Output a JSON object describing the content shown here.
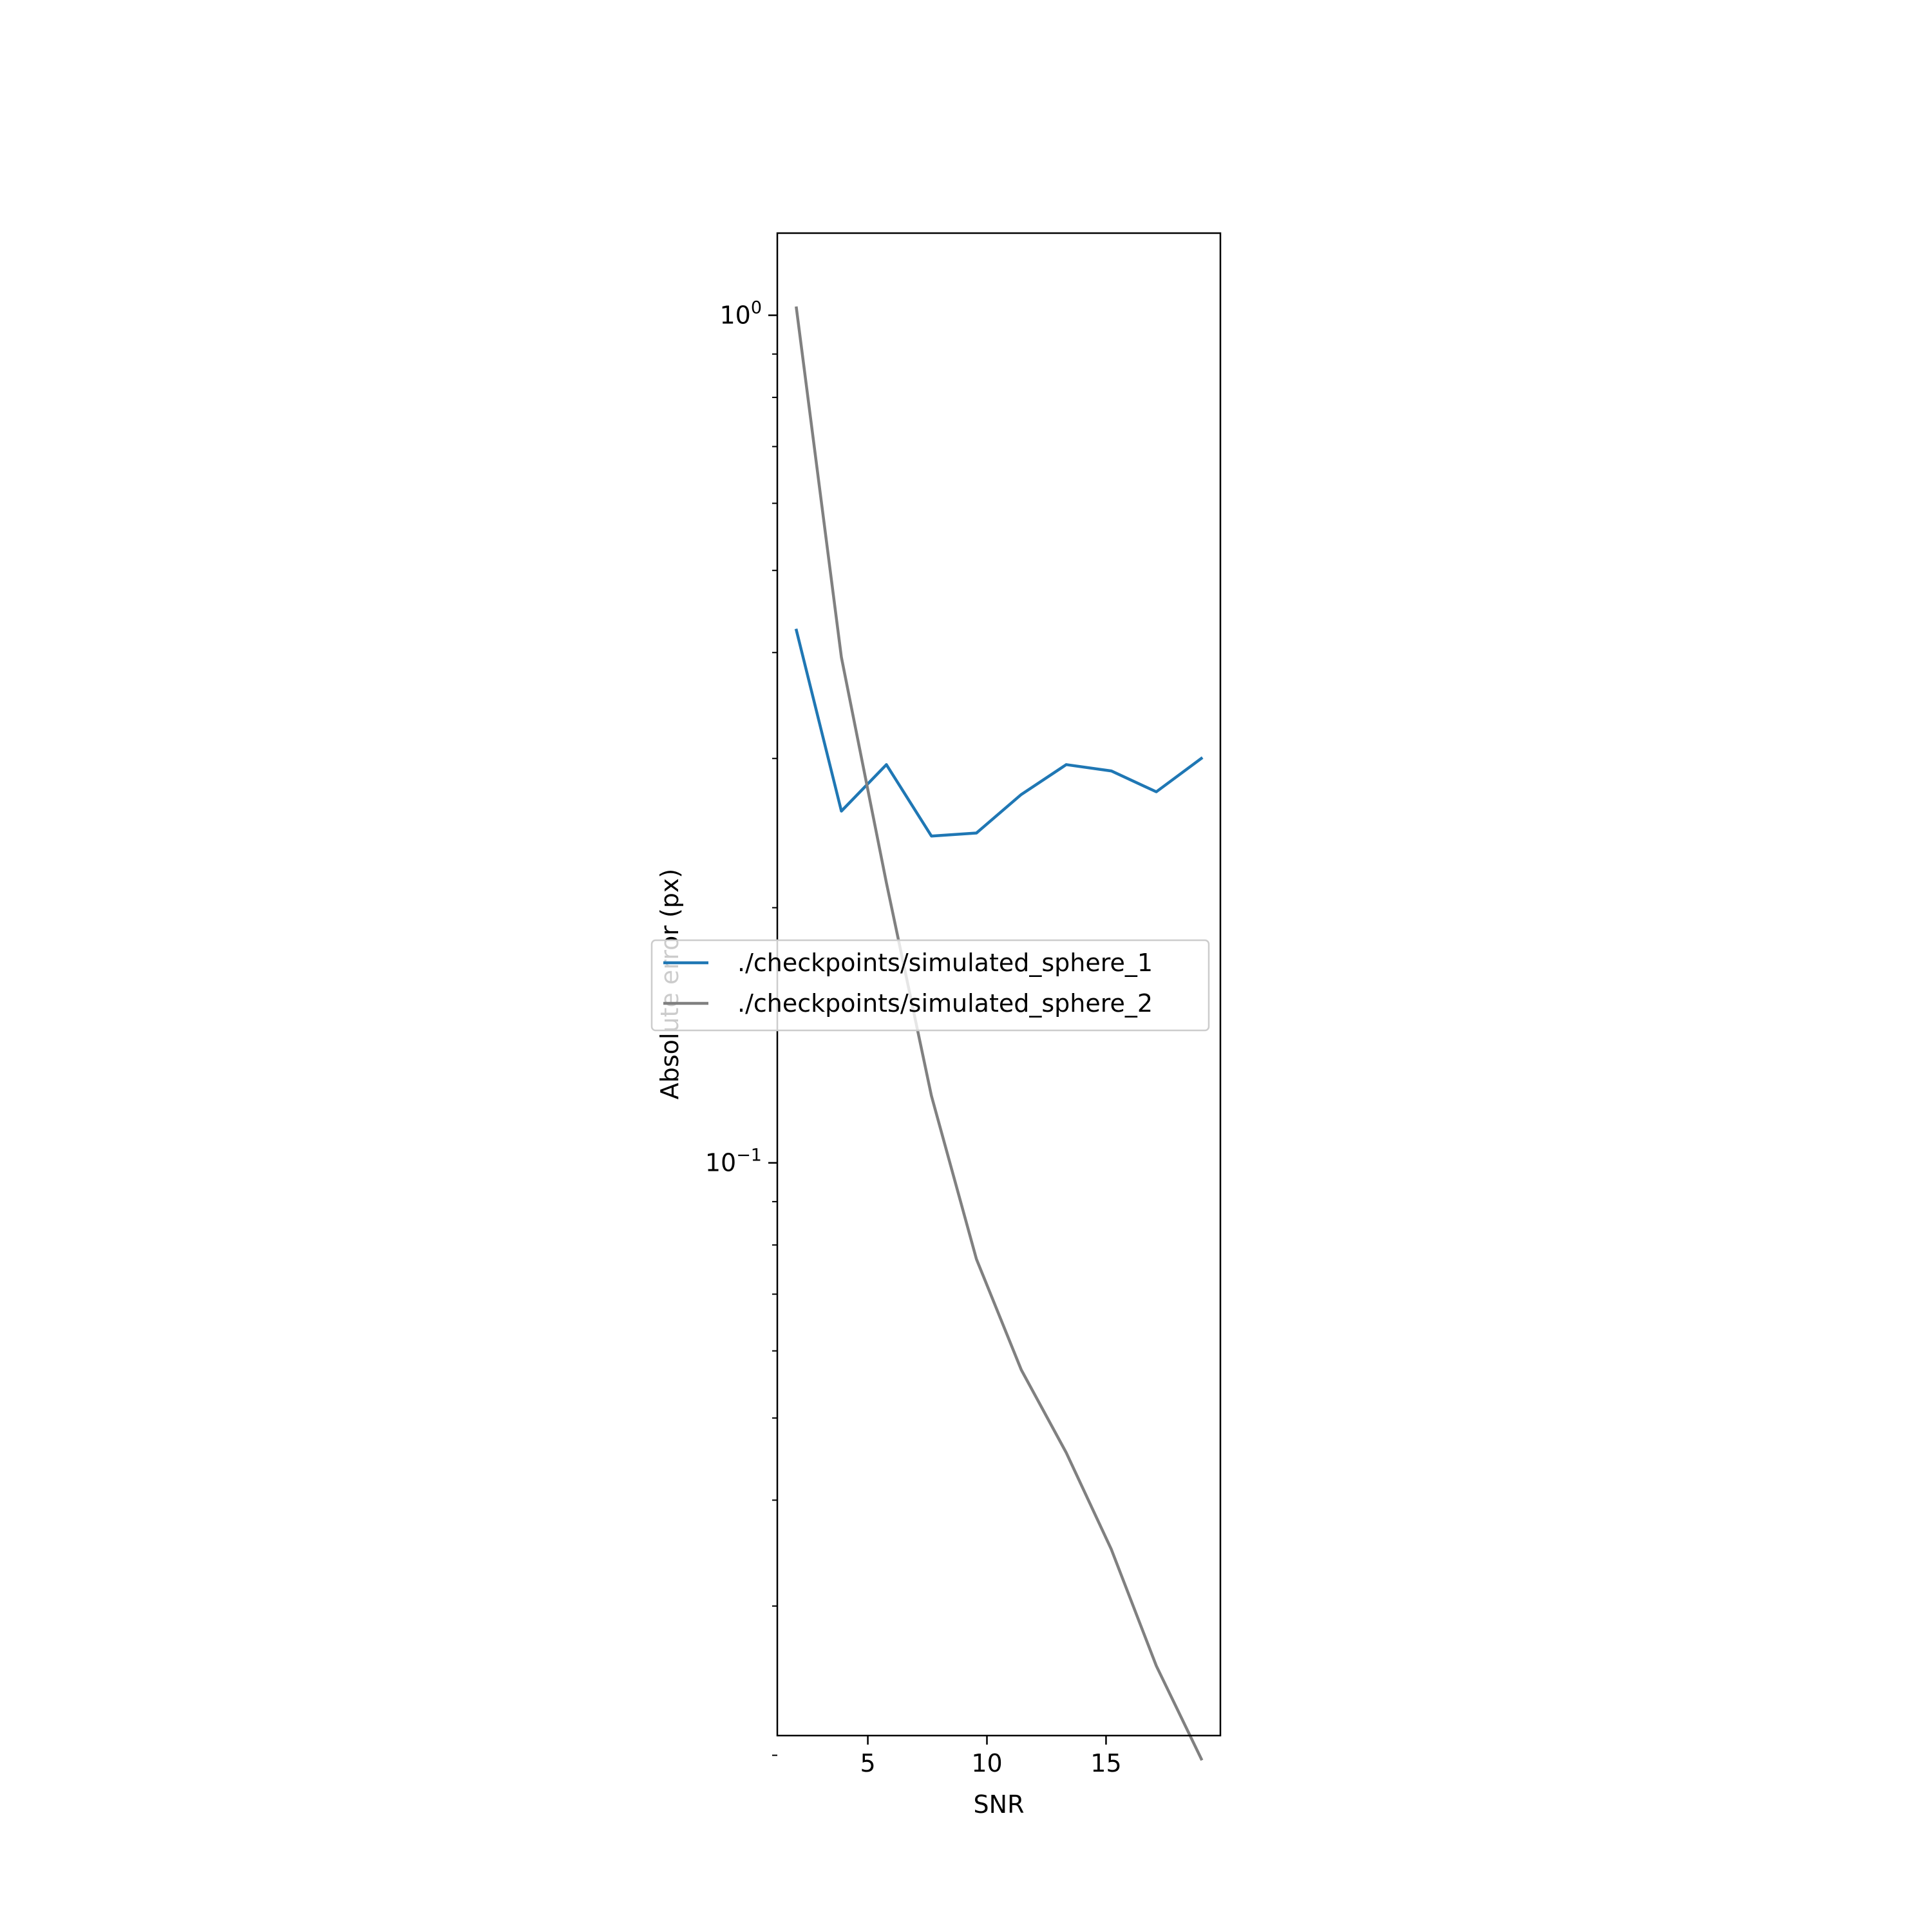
{
  "chart_data": {
    "type": "line",
    "title": "",
    "xlabel": "SNR",
    "ylabel": "Absolute error (px)",
    "xscale": "linear",
    "yscale": "log",
    "xlim": [
      1.2,
      19.8
    ],
    "ylim": [
      0.0211,
      1.25
    ],
    "xticks": [
      5,
      10,
      15
    ],
    "xtick_labels": [
      "5",
      "10",
      "15"
    ],
    "yticks_major": [
      {
        "value": 1,
        "base": "10",
        "exp": "0"
      },
      {
        "value": 0.1,
        "base": "10",
        "exp": "−1"
      }
    ],
    "yticks_minor": [
      0.02,
      0.03,
      0.04,
      0.05,
      0.06,
      0.07,
      0.08,
      0.09,
      0.2,
      0.3,
      0.4,
      0.5,
      0.6,
      0.7,
      0.8,
      0.9
    ],
    "grid": false,
    "legend_position": "center",
    "series": [
      {
        "name": "./checkpoints/simulated_sphere_1",
        "color": "#1f77b4",
        "x": [
          2.0,
          3.89,
          5.78,
          7.67,
          9.56,
          11.44,
          13.33,
          15.22,
          17.11,
          19.0
        ],
        "y": [
          0.425,
          0.26,
          0.295,
          0.243,
          0.245,
          0.272,
          0.295,
          0.29,
          0.274,
          0.3
        ]
      },
      {
        "name": "./checkpoints/simulated_sphere_2",
        "color": "#808080",
        "x": [
          2.0,
          3.89,
          5.78,
          7.67,
          9.56,
          11.44,
          13.33,
          15.22,
          17.11,
          19.0
        ],
        "y": [
          1.02,
          0.395,
          0.214,
          0.12,
          0.077,
          0.057,
          0.0455,
          0.035,
          0.0255,
          0.0198
        ]
      }
    ]
  }
}
